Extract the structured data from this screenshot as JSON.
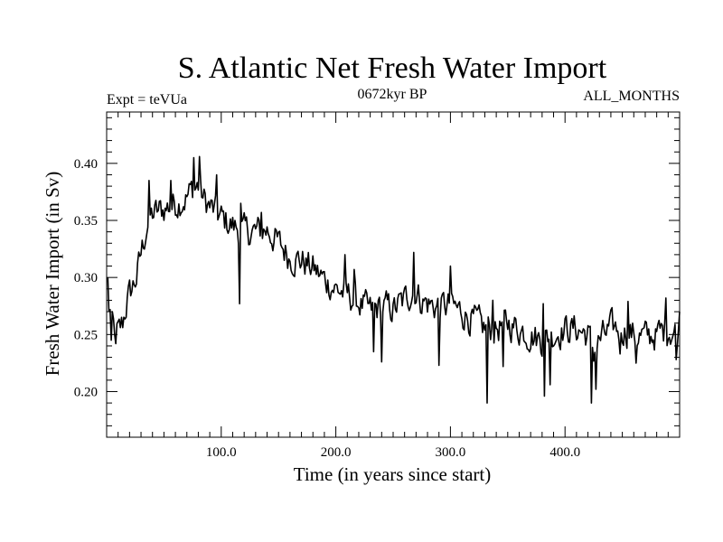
{
  "header": {
    "title": "S. Atlantic Net Fresh Water Import",
    "experiment": "Expt = teVUa",
    "period": "0672kyr BP",
    "months": "ALL_MONTHS"
  },
  "chart_data": {
    "type": "line",
    "title": "S. Atlantic Net Fresh Water Import",
    "xlabel": "Time (in years since start)",
    "ylabel": "Fresh Water Import (in Sv)",
    "xlim": [
      0,
      500
    ],
    "ylim": [
      0.16,
      0.445
    ],
    "x_ticks": [
      100,
      200,
      300,
      400
    ],
    "x_tick_labels": [
      "100.0",
      "200.0",
      "300.0",
      "400.0"
    ],
    "y_ticks": [
      0.2,
      0.25,
      0.3,
      0.35,
      0.4
    ],
    "y_tick_labels": [
      "0.20",
      "0.25",
      "0.30",
      "0.35",
      "0.40"
    ],
    "line_color": "#000000",
    "series": [
      {
        "name": "Fresh Water Import",
        "x_start": 1,
        "x_step": 1,
        "trend": [
          [
            0,
            0.28
          ],
          [
            3,
            0.27
          ],
          [
            6,
            0.255
          ],
          [
            10,
            0.25
          ],
          [
            14,
            0.26
          ],
          [
            18,
            0.28
          ],
          [
            22,
            0.29
          ],
          [
            26,
            0.3
          ],
          [
            30,
            0.32
          ],
          [
            35,
            0.345
          ],
          [
            40,
            0.355
          ],
          [
            50,
            0.36
          ],
          [
            60,
            0.365
          ],
          [
            70,
            0.37
          ],
          [
            75,
            0.378
          ],
          [
            80,
            0.38
          ],
          [
            85,
            0.368
          ],
          [
            90,
            0.362
          ],
          [
            100,
            0.352
          ],
          [
            110,
            0.345
          ],
          [
            120,
            0.34
          ],
          [
            130,
            0.34
          ],
          [
            140,
            0.342
          ],
          [
            150,
            0.33
          ],
          [
            160,
            0.318
          ],
          [
            170,
            0.315
          ],
          [
            180,
            0.308
          ],
          [
            190,
            0.298
          ],
          [
            200,
            0.29
          ],
          [
            210,
            0.285
          ],
          [
            220,
            0.278
          ],
          [
            230,
            0.27
          ],
          [
            240,
            0.275
          ],
          [
            250,
            0.272
          ],
          [
            260,
            0.28
          ],
          [
            268,
            0.29
          ],
          [
            275,
            0.28
          ],
          [
            285,
            0.275
          ],
          [
            300,
            0.275
          ],
          [
            310,
            0.27
          ],
          [
            320,
            0.262
          ],
          [
            330,
            0.255
          ],
          [
            340,
            0.255
          ],
          [
            350,
            0.26
          ],
          [
            360,
            0.255
          ],
          [
            370,
            0.25
          ],
          [
            380,
            0.245
          ],
          [
            390,
            0.25
          ],
          [
            400,
            0.255
          ],
          [
            410,
            0.255
          ],
          [
            420,
            0.25
          ],
          [
            425,
            0.235
          ],
          [
            430,
            0.245
          ],
          [
            440,
            0.255
          ],
          [
            450,
            0.255
          ],
          [
            460,
            0.25
          ],
          [
            470,
            0.248
          ],
          [
            480,
            0.25
          ],
          [
            490,
            0.255
          ],
          [
            500,
            0.25
          ]
        ],
        "noise_amplitude": 0.012,
        "dips": [
          [
            4,
            0.245
          ],
          [
            8,
            0.242
          ],
          [
            116,
            0.277
          ],
          [
            233,
            0.235
          ],
          [
            240,
            0.226
          ],
          [
            290,
            0.223
          ],
          [
            332,
            0.19
          ],
          [
            346,
            0.222
          ],
          [
            382,
            0.196
          ],
          [
            387,
            0.206
          ],
          [
            423,
            0.19
          ],
          [
            427,
            0.202
          ],
          [
            448,
            0.233
          ],
          [
            462,
            0.225
          ],
          [
            497,
            0.228
          ]
        ],
        "peaks": [
          [
            1,
            0.3
          ],
          [
            37,
            0.385
          ],
          [
            56,
            0.385
          ],
          [
            76,
            0.405
          ],
          [
            81,
            0.406
          ],
          [
            96,
            0.39
          ],
          [
            117,
            0.365
          ],
          [
            135,
            0.357
          ],
          [
            208,
            0.32
          ],
          [
            216,
            0.307
          ],
          [
            268,
            0.322
          ],
          [
            300,
            0.31
          ],
          [
            337,
            0.28
          ],
          [
            381,
            0.277
          ],
          [
            455,
            0.279
          ],
          [
            488,
            0.282
          ],
          [
            500,
            0.27
          ]
        ]
      }
    ]
  }
}
